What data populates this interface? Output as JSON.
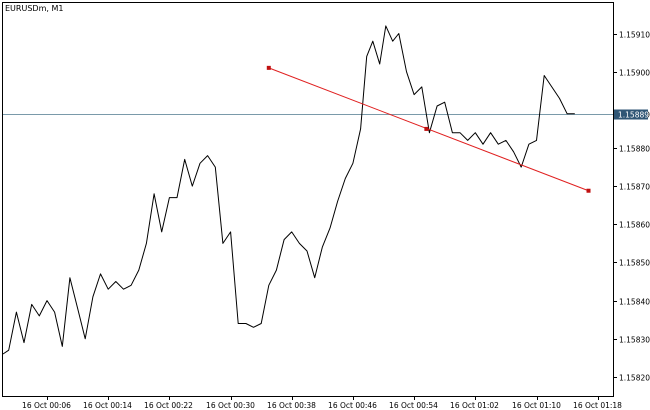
{
  "symbol_title": "EURUSDm, M1",
  "current_bid_label": "1.15889",
  "colors": {
    "price_line": "#000000",
    "trendline": "#e02020",
    "bid_line": "#7a9aaa",
    "bid_label_bg": "#2f5675"
  },
  "chart_data": {
    "type": "line",
    "title": "EURUSDm, M1",
    "xlabel": "",
    "ylabel": "",
    "ylim": [
      1.15815,
      1.15918
    ],
    "grid": false,
    "y_ticks": [
      "1.15910",
      "1.15900",
      "1.15889",
      "1.15880",
      "1.15870",
      "1.15860",
      "1.15850",
      "1.15840",
      "1.15830",
      "1.15820"
    ],
    "x_ticks": [
      "16 Oct 00:06",
      "16 Oct 00:14",
      "16 Oct 00:22",
      "16 Oct 00:30",
      "16 Oct 00:38",
      "16 Oct 00:46",
      "16 Oct 00:54",
      "16 Oct 01:02",
      "16 Oct 01:10",
      "16 Oct 01:18"
    ],
    "x_tick_minutes": [
      6,
      14,
      22,
      30,
      38,
      46,
      54,
      62,
      70,
      78
    ],
    "x_range_minutes": [
      0.25,
      80
    ],
    "series": [
      {
        "x_minutes": [
          0.25,
          1.0,
          2.0,
          3.0,
          4.0,
          5.0,
          6.0,
          7.0,
          8.0,
          9.0,
          10.0,
          11.0,
          12.0,
          13.0,
          14.0,
          15.0,
          16.0,
          17.0,
          18.0,
          19.0,
          20.0,
          21.0,
          22.0,
          23.0,
          24.0,
          25.0,
          26.0,
          27.0,
          28.0,
          29.0,
          30.0,
          31.0,
          32.0,
          33.0,
          34.0,
          35.0,
          36.0,
          37.0,
          38.0,
          39.0,
          40.0,
          41.0,
          42.0,
          43.0,
          44.0,
          45.0,
          46.0,
          47.0,
          47.8,
          48.6,
          49.5,
          50.3,
          51.2,
          52.0,
          53.0,
          54.0,
          55.0,
          56.0,
          57.0,
          58.0,
          59.0,
          60.0,
          61.0,
          62.0,
          63.0,
          64.0,
          65.0,
          66.0,
          67.0,
          68.0,
          69.0,
          70.0,
          71.0,
          72.0,
          73.0,
          74.0,
          75.0
        ],
        "values": [
          1.15826,
          1.15827,
          1.15837,
          1.15829,
          1.15839,
          1.15836,
          1.1584,
          1.15837,
          1.15828,
          1.15846,
          1.15838,
          1.1583,
          1.15841,
          1.15847,
          1.15843,
          1.15845,
          1.15843,
          1.15844,
          1.15848,
          1.15855,
          1.15868,
          1.15858,
          1.15867,
          1.15867,
          1.15877,
          1.1587,
          1.15876,
          1.15878,
          1.15875,
          1.15855,
          1.15858,
          1.15834,
          1.15834,
          1.15833,
          1.15834,
          1.15844,
          1.15848,
          1.15856,
          1.15858,
          1.15855,
          1.15853,
          1.15846,
          1.15854,
          1.15859,
          1.15866,
          1.15872,
          1.15876,
          1.15885,
          1.15904,
          1.15908,
          1.15902,
          1.15912,
          1.15908,
          1.1591,
          1.159,
          1.15894,
          1.15896,
          1.15884,
          1.15891,
          1.15892,
          1.15884,
          1.15884,
          1.15882,
          1.15884,
          1.15881,
          1.15884,
          1.15881,
          1.15882,
          1.15879,
          1.15875,
          1.15881,
          1.15882,
          1.15899,
          1.15896,
          1.15893,
          1.15889,
          1.15889
        ]
      }
    ],
    "trendline": {
      "points": [
        {
          "x_minutes": 35.0,
          "value": 1.15901
        },
        {
          "x_minutes": 55.6,
          "value": 1.15885
        },
        {
          "x_minutes": 76.8,
          "value": 1.158688
        }
      ]
    },
    "current_price": 1.15889
  }
}
